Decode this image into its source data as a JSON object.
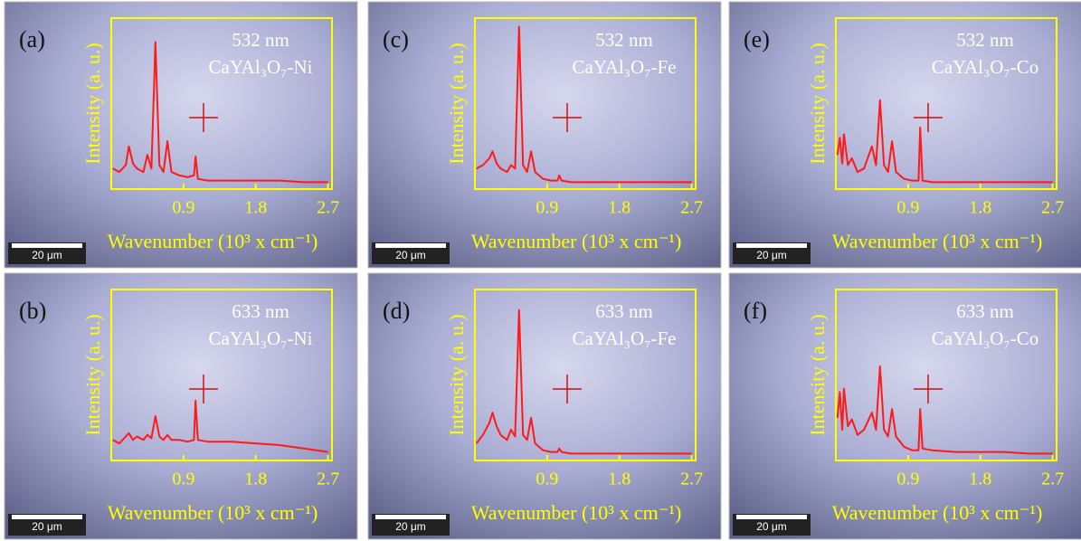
{
  "chart_data": [
    {
      "type": "line",
      "panel_label": "(a)",
      "title": "532 nm",
      "subtitle": "CaYAl₃O₇-Ni",
      "y_label": "Intensity (a. u.)",
      "x_label": "Wavenumber (10³ x cm⁻¹)",
      "scale_bar_label": "20 μm",
      "color": "#ff1a1a",
      "xlim": [
        0,
        2.75
      ],
      "xticks": [
        0.9,
        1.8,
        2.7
      ],
      "ylim": [
        0,
        100
      ],
      "x": [
        0.02,
        0.1,
        0.18,
        0.22,
        0.27,
        0.32,
        0.4,
        0.45,
        0.5,
        0.55,
        0.6,
        0.65,
        0.7,
        0.75,
        0.85,
        0.95,
        1.03,
        1.05,
        1.08,
        1.2,
        1.5,
        1.8,
        2.1,
        2.4,
        2.7
      ],
      "values": [
        12,
        10,
        14,
        25,
        15,
        12,
        10,
        20,
        12,
        86,
        14,
        10,
        28,
        10,
        8,
        7,
        8,
        19,
        6,
        5,
        5,
        5,
        5,
        4,
        4
      ]
    },
    {
      "type": "line",
      "panel_label": "(b)",
      "title": "633 nm",
      "subtitle": "CaYAl₃O₇-Ni",
      "y_label": "Intensity (a. u.)",
      "x_label": "Wavenumber (10³ x cm⁻¹)",
      "scale_bar_label": "20 μm",
      "color": "#ff1a1a",
      "xlim": [
        0,
        2.75
      ],
      "xticks": [
        0.9,
        1.8,
        2.7
      ],
      "ylim": [
        0,
        100
      ],
      "x": [
        0.02,
        0.1,
        0.18,
        0.22,
        0.27,
        0.32,
        0.4,
        0.45,
        0.5,
        0.55,
        0.6,
        0.65,
        0.7,
        0.75,
        0.85,
        0.95,
        1.03,
        1.05,
        1.08,
        1.2,
        1.5,
        1.8,
        2.1,
        2.4,
        2.7
      ],
      "values": [
        12,
        10,
        14,
        16,
        12,
        14,
        12,
        15,
        13,
        26,
        14,
        12,
        15,
        12,
        12,
        11,
        12,
        35,
        12,
        11,
        11,
        10,
        9,
        7,
        5
      ]
    },
    {
      "type": "line",
      "panel_label": "(c)",
      "title": "532 nm",
      "subtitle": "CaYAl₃O₇-Fe",
      "y_label": "Intensity (a. u.)",
      "x_label": "Wavenumber (10³ x cm⁻¹)",
      "scale_bar_label": "20 μm",
      "color": "#ff1a1a",
      "xlim": [
        0,
        2.75
      ],
      "xticks": [
        0.9,
        1.8,
        2.7
      ],
      "ylim": [
        0,
        100
      ],
      "x": [
        0.02,
        0.1,
        0.18,
        0.22,
        0.27,
        0.32,
        0.4,
        0.45,
        0.5,
        0.55,
        0.6,
        0.65,
        0.7,
        0.75,
        0.85,
        0.95,
        1.03,
        1.05,
        1.08,
        1.2,
        1.5,
        1.8,
        2.1,
        2.4,
        2.7
      ],
      "values": [
        12,
        14,
        18,
        22,
        15,
        12,
        10,
        14,
        12,
        95,
        14,
        10,
        22,
        10,
        6,
        5,
        5,
        8,
        5,
        4,
        4,
        4,
        4,
        4,
        4
      ]
    },
    {
      "type": "line",
      "panel_label": "(d)",
      "title": "633 nm",
      "subtitle": "CaYAl₃O₇-Fe",
      "y_label": "Intensity (a. u.)",
      "x_label": "Wavenumber (10³ x cm⁻¹)",
      "scale_bar_label": "20 μm",
      "color": "#ff1a1a",
      "xlim": [
        0,
        2.75
      ],
      "xticks": [
        0.9,
        1.8,
        2.7
      ],
      "ylim": [
        0,
        100
      ],
      "x": [
        0.02,
        0.1,
        0.18,
        0.22,
        0.27,
        0.32,
        0.4,
        0.45,
        0.5,
        0.55,
        0.6,
        0.65,
        0.7,
        0.75,
        0.85,
        0.95,
        1.03,
        1.05,
        1.08,
        1.2,
        1.5,
        1.8,
        2.1,
        2.4,
        2.7
      ],
      "values": [
        10,
        15,
        22,
        28,
        20,
        15,
        12,
        18,
        14,
        88,
        15,
        12,
        25,
        10,
        6,
        5,
        5,
        7,
        5,
        4,
        4,
        4,
        4,
        4,
        4
      ]
    },
    {
      "type": "line",
      "panel_label": "(e)",
      "title": "532 nm",
      "subtitle": "CaYAl₃O₇-Co",
      "y_label": "Intensity (a. u.)",
      "x_label": "Wavenumber (10³ x cm⁻¹)",
      "scale_bar_label": "20 μm",
      "color": "#ff1a1a",
      "xlim": [
        0,
        2.75
      ],
      "xticks": [
        0.9,
        1.8,
        2.7
      ],
      "ylim": [
        0,
        100
      ],
      "x": [
        0.02,
        0.05,
        0.08,
        0.1,
        0.15,
        0.2,
        0.27,
        0.35,
        0.45,
        0.5,
        0.55,
        0.6,
        0.65,
        0.7,
        0.75,
        0.85,
        0.95,
        1.03,
        1.05,
        1.08,
        1.2,
        1.5,
        1.8,
        2.1,
        2.4,
        2.7
      ],
      "values": [
        20,
        30,
        15,
        32,
        14,
        18,
        10,
        12,
        25,
        14,
        52,
        14,
        10,
        28,
        10,
        6,
        5,
        5,
        36,
        5,
        4,
        4,
        4,
        4,
        4,
        4
      ]
    },
    {
      "type": "line",
      "panel_label": "(f)",
      "title": "633 nm",
      "subtitle": "CaYAl₃O₇-Co",
      "y_label": "Intensity (a. u.)",
      "x_label": "Wavenumber (10³ x cm⁻¹)",
      "scale_bar_label": "20 μm",
      "color": "#ff1a1a",
      "xlim": [
        0,
        2.75
      ],
      "xticks": [
        0.9,
        1.8,
        2.7
      ],
      "ylim": [
        0,
        100
      ],
      "x": [
        0.02,
        0.05,
        0.08,
        0.1,
        0.15,
        0.2,
        0.27,
        0.35,
        0.45,
        0.5,
        0.55,
        0.6,
        0.65,
        0.7,
        0.75,
        0.85,
        0.95,
        1.03,
        1.05,
        1.08,
        1.2,
        1.5,
        1.8,
        2.1,
        2.4,
        2.7
      ],
      "values": [
        25,
        40,
        18,
        42,
        20,
        24,
        15,
        18,
        28,
        18,
        55,
        18,
        14,
        30,
        14,
        8,
        6,
        6,
        30,
        7,
        6,
        5,
        5,
        5,
        4,
        4
      ]
    }
  ]
}
